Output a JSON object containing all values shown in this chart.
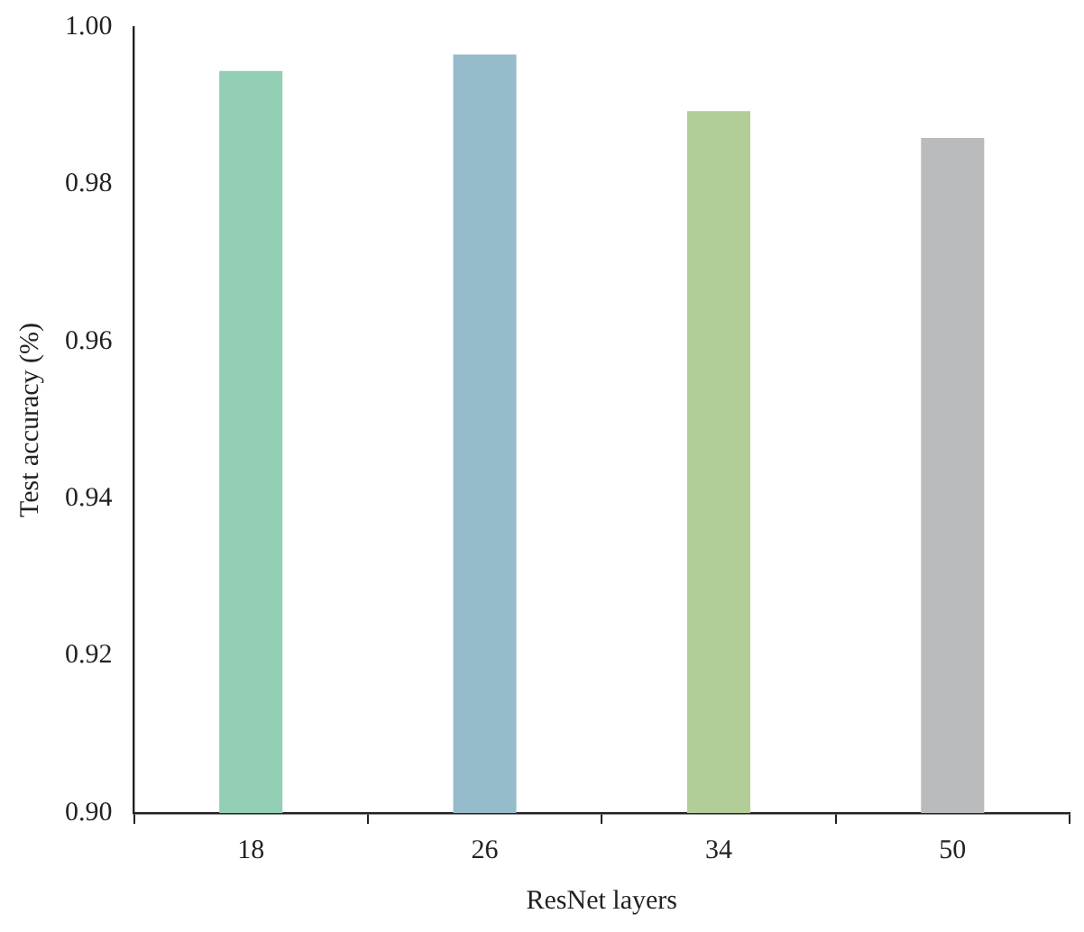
{
  "chart_data": {
    "type": "bar",
    "xlabel": "ResNet layers",
    "ylabel": "Test accuracy (%)",
    "categories": [
      "18",
      "26",
      "34",
      "50"
    ],
    "values": [
      0.9944,
      0.9965,
      0.9893,
      0.9859
    ],
    "colors": [
      "#93cfb5",
      "#96bccb",
      "#b2cd98",
      "#b9bbbd"
    ],
    "ylim": [
      0.9,
      1.0
    ],
    "yticks": [
      {
        "value": 0.9,
        "label": "0.90"
      },
      {
        "value": 0.92,
        "label": "0.92"
      },
      {
        "value": 0.94,
        "label": "0.94"
      },
      {
        "value": 0.96,
        "label": "0.96"
      },
      {
        "value": 0.98,
        "label": "0.98"
      },
      {
        "value": 1.0,
        "label": "1.00"
      }
    ],
    "grid": false,
    "legend": false
  }
}
